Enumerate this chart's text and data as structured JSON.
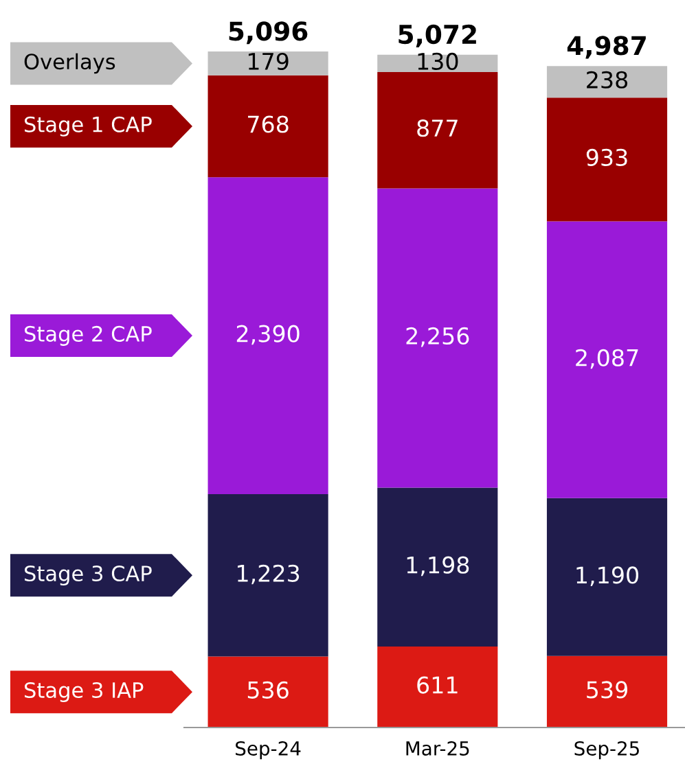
{
  "chart_data": {
    "type": "bar",
    "stacked": true,
    "categories": [
      "Sep-24",
      "Mar-25",
      "Sep-25"
    ],
    "series": [
      {
        "name": "Stage 3 IAP",
        "color": "#dc1a14",
        "values": [
          536,
          611,
          539
        ],
        "value_labels": [
          "536",
          "611",
          "539"
        ]
      },
      {
        "name": "Stage 3 CAP",
        "color": "#201c4c",
        "values": [
          1223,
          1198,
          1190
        ],
        "value_labels": [
          "1,223",
          "1,198",
          "1,190"
        ]
      },
      {
        "name": "Stage 2 CAP",
        "color": "#9a1ad8",
        "values": [
          2390,
          2256,
          2087
        ],
        "value_labels": [
          "2,390",
          "2,256",
          "2,087"
        ]
      },
      {
        "name": "Stage 1 CAP",
        "color": "#990000",
        "values": [
          768,
          877,
          933
        ],
        "value_labels": [
          "768",
          "877",
          "933"
        ]
      },
      {
        "name": "Overlays",
        "color": "#c0c0c0",
        "values": [
          179,
          130,
          238
        ],
        "value_labels": [
          "179",
          "130",
          "238"
        ]
      }
    ],
    "totals": [
      "5,096",
      "5,072",
      "4,987"
    ],
    "legend": "left",
    "grid": false
  }
}
